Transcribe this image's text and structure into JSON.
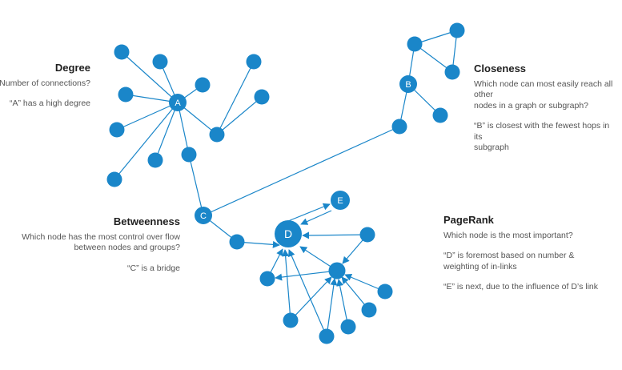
{
  "colors": {
    "node": "#1a86c9",
    "edge": "#1a86c9",
    "title": "#1f1f1f",
    "text": "#555555"
  },
  "labels": {
    "a": "A",
    "b": "B",
    "c": "C",
    "d": "D",
    "e": "E"
  },
  "degree": {
    "title": "Degree",
    "question": "Number of connections?",
    "note": "“A” has a high degree"
  },
  "closeness": {
    "title": "Closeness",
    "question_line1": "Which node can most easily reach all other",
    "question_line2": "nodes in a graph or subgraph?",
    "note_line1": "“B” is closest with the fewest hops in its",
    "note_line2": "subgraph"
  },
  "betweenness": {
    "title": "Betweenness",
    "question_line1": "Which node has the most control over flow",
    "question_line2": "between nodes and groups?",
    "note": "“C”  is  a bridge"
  },
  "pagerank": {
    "title": "PageRank",
    "question": "Which node is the most important?",
    "note1_line1": "“D” is foremost based on number &",
    "note1_line2": "weighting of in-links",
    "note2": "“E” is next, due to the influence of D’s link"
  }
}
